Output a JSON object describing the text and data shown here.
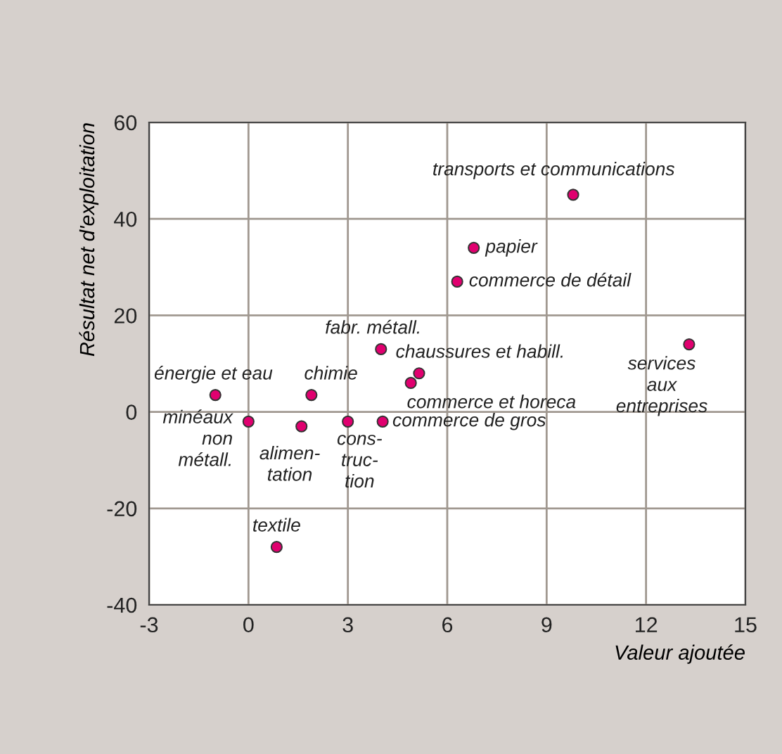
{
  "chart_data": {
    "type": "scatter",
    "xlabel": "Valeur ajoutée",
    "ylabel": "Résultat net d'exploitation",
    "xlim": [
      -3,
      15
    ],
    "xticks": [
      -3,
      0,
      3,
      6,
      9,
      12,
      15
    ],
    "ylim": [
      -40,
      60
    ],
    "yticks": [
      -40,
      -20,
      0,
      20,
      40,
      60
    ],
    "grid": true,
    "marker": "circle",
    "series": [
      {
        "color": "#e0006f",
        "x": [
          -1.0,
          0.0,
          1.6,
          1.9,
          3.0,
          4.05,
          4.0,
          4.9,
          5.15,
          0.85,
          6.3,
          6.8,
          9.8,
          13.3
        ],
        "values": [
          3.5,
          -2,
          -3,
          3.5,
          -2,
          -2,
          13,
          6,
          8,
          -28,
          27,
          34,
          45,
          14
        ]
      }
    ],
    "annotations": [
      {
        "text": "énergie et eau",
        "x": -1.0,
        "y": 3.5
      },
      {
        "text": "minéaux\nnon\nmétall.",
        "x": 0.0,
        "y": -2
      },
      {
        "text": "alimen-\ntation",
        "x": 1.6,
        "y": -3
      },
      {
        "text": "chimie",
        "x": 1.9,
        "y": 3.5
      },
      {
        "text": "cons-\ntruc-\ntion",
        "x": 3.0,
        "y": -2
      },
      {
        "text": "commerce de gros",
        "x": 4.05,
        "y": -2
      },
      {
        "text": "fabr. métall.",
        "x": 4.0,
        "y": 13
      },
      {
        "text": "commerce et horeca",
        "x": 4.9,
        "y": 6
      },
      {
        "text": "chaussures et habill.",
        "x": 5.15,
        "y": 8
      },
      {
        "text": "textile",
        "x": 0.85,
        "y": -28
      },
      {
        "text": "commerce de détail",
        "x": 6.3,
        "y": 27
      },
      {
        "text": "papier",
        "x": 6.8,
        "y": 34
      },
      {
        "text": "transports et communications",
        "x": 9.8,
        "y": 45
      },
      {
        "text": "services\naux\nentreprises",
        "x": 13.3,
        "y": 14
      }
    ]
  }
}
